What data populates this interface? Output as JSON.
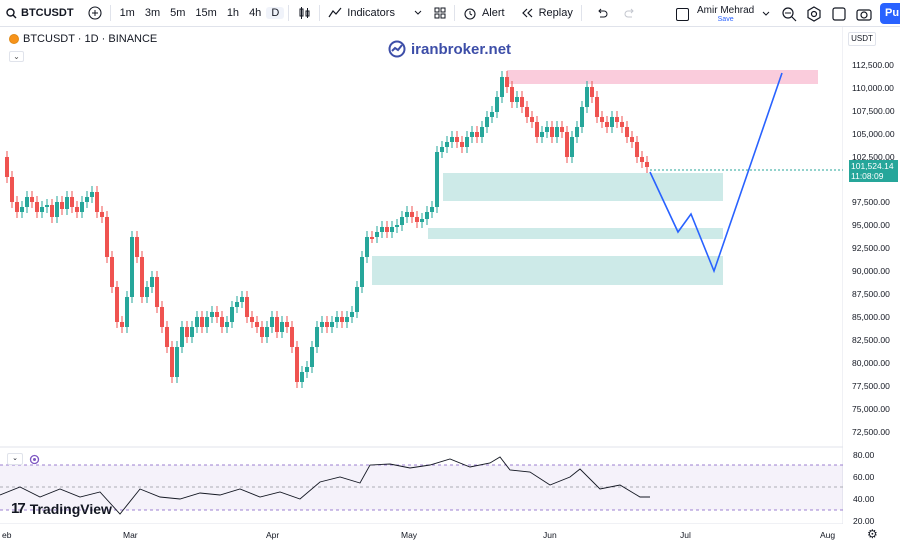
{
  "toolbar": {
    "symbol": "BTCUSDT",
    "timeframes": [
      "1m",
      "3m",
      "5m",
      "15m",
      "1h",
      "4h",
      "D"
    ],
    "active_timeframe": "D",
    "indicators_label": "Indicators",
    "alert_label": "Alert",
    "replay_label": "Replay",
    "user_name": "Amir Mehrad",
    "user_status": "Save",
    "publish_label": "Pu"
  },
  "chart_header": {
    "title": "BTCUSDT · 1D · BINANCE",
    "watermark": "iranbroker.net"
  },
  "price_axis": {
    "currency": "USDT",
    "labels": [
      "112,500.00",
      "110,000.00",
      "107,500.00",
      "105,000.00",
      "102,500.00",
      "97,500.00",
      "95,000.00",
      "92,500.00",
      "90,000.00",
      "87,500.00",
      "85,000.00",
      "82,500.00",
      "80,000.00",
      "77,500.00",
      "75,000.00",
      "72,500.00"
    ],
    "current_price": "101,524.14",
    "countdown": "11:08:09"
  },
  "rsi_axis": {
    "labels": [
      "80.00",
      "60.00",
      "40.00",
      "20.00"
    ]
  },
  "time_axis": {
    "labels": [
      "eb",
      "Mar",
      "Apr",
      "May",
      "Jun",
      "Jul",
      "Aug"
    ]
  },
  "branding": {
    "logo_text": "TradingView"
  },
  "colors": {
    "up": "#26a69a",
    "down": "#ef5350",
    "zone_green": "#b2dfdb",
    "zone_red": "#f8bbd0",
    "projection": "#2962ff",
    "rsi_band": "#7e57c2"
  },
  "icons": [
    "search-icon",
    "plus-icon",
    "bar-style-icon",
    "indicators-icon",
    "layout-icon",
    "alert-icon",
    "replay-icon",
    "undo-icon",
    "redo-icon",
    "magnifier-icon",
    "settings-icon",
    "snapshot-icon",
    "fullscreen-icon",
    "camera-icon",
    "gear-icon"
  ]
}
